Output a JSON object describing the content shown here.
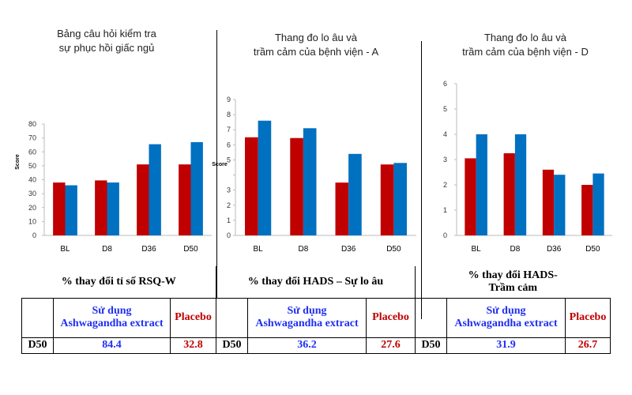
{
  "colors": {
    "ashwagandha": "#c00000",
    "placebo": "#0070c0"
  },
  "chart_data": [
    {
      "type": "bar",
      "title_lines": [
        "Bảng câu hỏi kiểm tra",
        "sự phục hồi giấc ngủ"
      ],
      "ylabel": "Score",
      "categories": [
        "BL",
        "D8",
        "D36",
        "D50"
      ],
      "ylim": [
        0,
        80
      ],
      "yticks": [
        "0",
        "10",
        "20",
        "30",
        "40",
        "50",
        "60",
        "70",
        "80"
      ],
      "series": [
        {
          "values": [
            38,
            39.5,
            51,
            51
          ]
        },
        {
          "values": [
            36,
            38,
            65.5,
            67
          ]
        }
      ]
    },
    {
      "type": "bar",
      "title_lines": [
        "Thang đo lo âu và",
        "trầm cảm của bệnh viện - A"
      ],
      "ylabel": "Score",
      "categories": [
        "BL",
        "D8",
        "D36",
        "D50"
      ],
      "ylim": [
        0,
        9
      ],
      "yticks": [
        "0",
        "1",
        "2",
        "3",
        "",
        "5",
        "6",
        "7",
        "8",
        "9"
      ],
      "series": [
        {
          "values": [
            6.5,
            6.45,
            3.5,
            4.7
          ]
        },
        {
          "values": [
            7.6,
            7.1,
            5.4,
            4.8
          ]
        }
      ]
    },
    {
      "type": "bar",
      "title_lines": [
        "Thang đo lo âu và",
        "trầm cảm của bệnh viện - D"
      ],
      "ylabel": "",
      "categories": [
        "BL",
        "D8",
        "D36",
        "D50"
      ],
      "ylim": [
        0,
        6
      ],
      "yticks": [
        "0",
        "1",
        "2",
        "3",
        "4",
        "5",
        "6"
      ],
      "series": [
        {
          "values": [
            3.05,
            3.25,
            2.6,
            2.0
          ]
        },
        {
          "values": [
            4.0,
            4.0,
            2.4,
            2.45
          ]
        }
      ]
    }
  ],
  "results": [
    {
      "header_lines": [
        "% thay đổi tỉ số RSQ-W"
      ],
      "row_label": "D50",
      "ashwagandha": "84.4",
      "placebo": "32.8"
    },
    {
      "header_lines": [
        "% thay đổi  HADS – Sự lo âu"
      ],
      "row_label": "D50",
      "ashwagandha": "36.2",
      "placebo": "27.6"
    },
    {
      "header_lines": [
        "% thay đổi HADS-",
        "Trầm cảm"
      ],
      "row_label": "D50",
      "ashwagandha": "31.9",
      "placebo": "26.7"
    }
  ],
  "legend": {
    "ashwagandha_lines": [
      "Sử dụng",
      "Ashwagandha extract"
    ],
    "placebo": "Placebo"
  }
}
